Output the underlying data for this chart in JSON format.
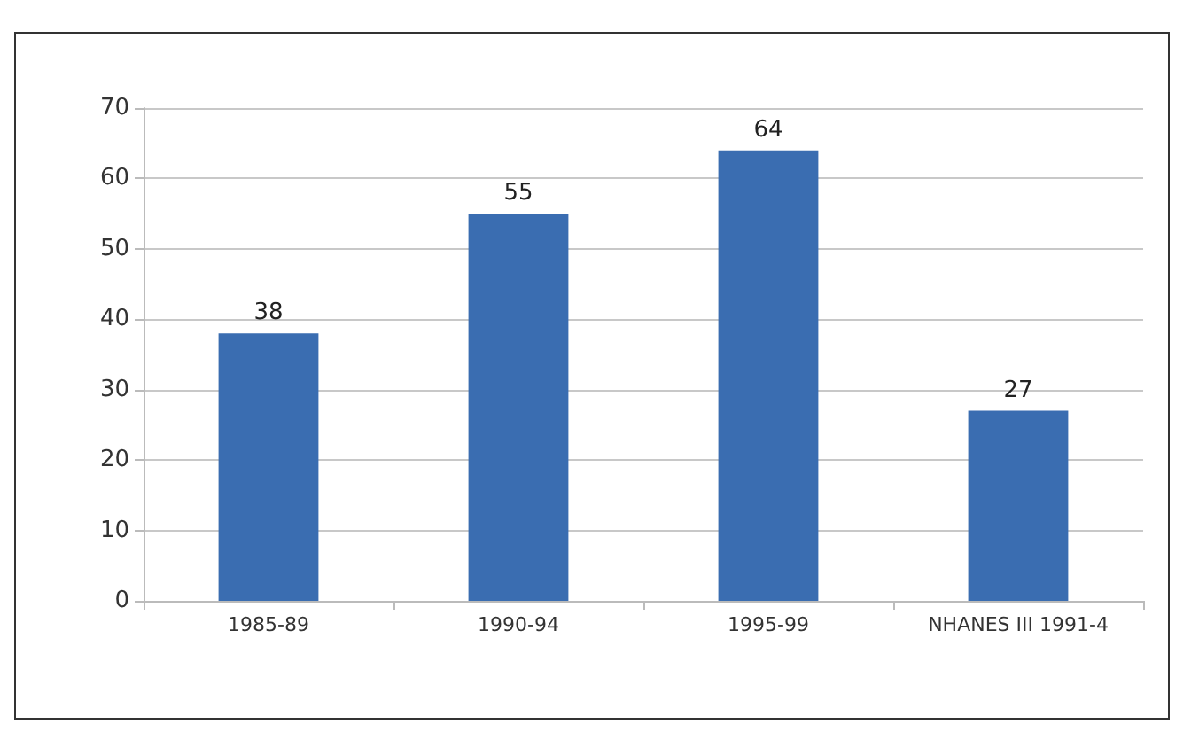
{
  "chart_data": {
    "type": "bar",
    "categories": [
      "1985-89",
      "1990-94",
      "1995-99",
      "NHANES III 1991-4"
    ],
    "values": [
      38,
      55,
      64,
      27
    ],
    "color": "#3a6db1",
    "ylim": [
      0,
      70
    ],
    "yticks": [
      0,
      10,
      20,
      30,
      40,
      50,
      60,
      70
    ],
    "grid": "y",
    "data_labels": true
  }
}
